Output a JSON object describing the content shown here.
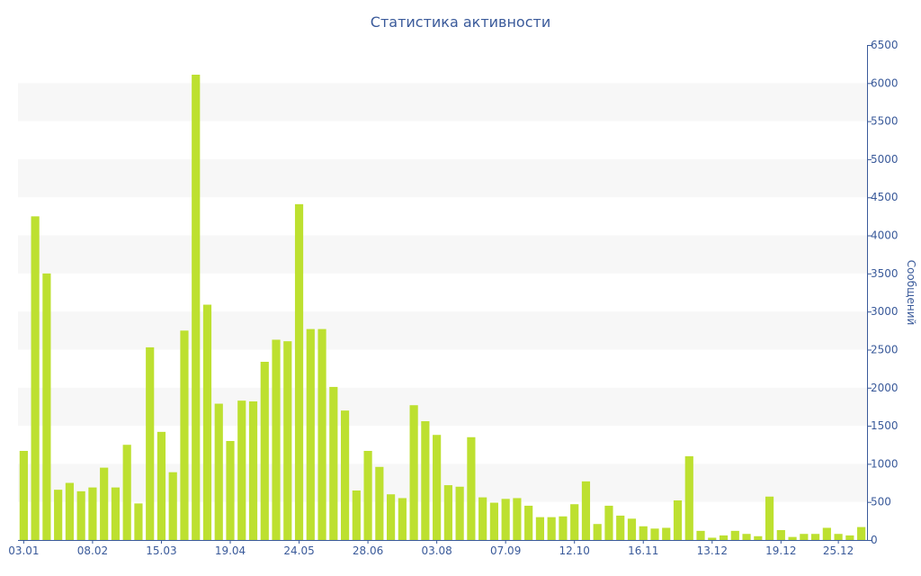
{
  "chart_data": {
    "type": "bar",
    "title": "Статистика активности",
    "ylabel": "Сообщений",
    "y_axis_side": "right",
    "ylim": [
      0,
      6500
    ],
    "y_ticks": [
      0,
      500,
      1000,
      1500,
      2000,
      2500,
      3000,
      3500,
      4000,
      4500,
      5000,
      5500,
      6000,
      6500
    ],
    "x_tick_labels": [
      "03.01",
      "08.02",
      "15.03",
      "19.04",
      "24.05",
      "28.06",
      "03.08",
      "07.09",
      "12.10",
      "16.11",
      "13.12",
      "19.12",
      "25.12"
    ],
    "x_tick_label_bar_index": [
      0,
      6,
      12,
      18,
      24,
      30,
      36,
      42,
      48,
      54,
      60,
      66,
      71
    ],
    "values": [
      1170,
      4250,
      3500,
      660,
      750,
      640,
      690,
      950,
      690,
      1250,
      480,
      2530,
      1420,
      890,
      2750,
      6110,
      3090,
      1790,
      1300,
      1830,
      1820,
      2340,
      2630,
      2610,
      4410,
      2770,
      2770,
      2010,
      1700,
      650,
      1170,
      960,
      600,
      550,
      1770,
      1560,
      1380,
      720,
      700,
      1350,
      560,
      490,
      540,
      550,
      450,
      300,
      300,
      310,
      470,
      770,
      210,
      450,
      320,
      280,
      180,
      150,
      160,
      520,
      1100,
      120,
      30,
      60,
      120,
      80,
      50,
      570,
      130,
      40,
      80,
      80,
      160,
      80,
      60,
      170
    ],
    "grid": "horizontal bands",
    "colors": {
      "bar": "#bde030",
      "band": "#f7f7f7",
      "axis": "#3a5a9a",
      "text": "#3a5a9a"
    }
  }
}
